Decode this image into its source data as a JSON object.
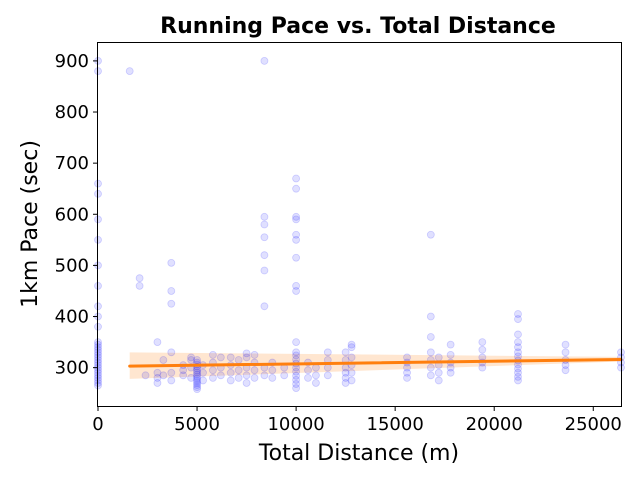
{
  "chart_data": {
    "type": "scatter",
    "title": "Running Pace vs. Total Distance",
    "xlabel": "Total Distance (m)",
    "ylabel": "1km Pace (sec)",
    "xlim": [
      0,
      26400
    ],
    "ylim": [
      225,
      935
    ],
    "xticks": [
      0,
      5000,
      10000,
      15000,
      20000,
      25000
    ],
    "xtick_labels": [
      "0",
      "5000",
      "10000",
      "15000",
      "20000",
      "25000"
    ],
    "yticks": [
      300,
      400,
      500,
      600,
      700,
      800,
      900
    ],
    "ytick_labels": [
      "300",
      "400",
      "500",
      "600",
      "700",
      "800",
      "900"
    ],
    "grid": false,
    "point_color": "#0000ff",
    "point_opacity": 0.12,
    "line_color": "#ff7f0e",
    "band_color": "#ffd6b0",
    "points": [
      {
        "x": 0,
        "y": [
          265,
          270,
          275,
          280,
          285,
          290,
          295,
          300,
          305,
          310,
          315,
          320,
          325,
          330,
          335,
          340,
          345,
          350,
          380,
          400,
          420,
          460,
          500,
          550,
          590,
          640,
          660,
          880,
          900
        ]
      },
      {
        "x": 1600,
        "y": [
          880
        ]
      },
      {
        "x": 2100,
        "y": [
          460,
          475
        ]
      },
      {
        "x": 2400,
        "y": [
          285
        ]
      },
      {
        "x": 3000,
        "y": [
          270,
          280,
          290,
          350
        ]
      },
      {
        "x": 3300,
        "y": [
          285,
          315
        ]
      },
      {
        "x": 3700,
        "y": [
          275,
          290,
          330,
          425,
          450,
          505
        ]
      },
      {
        "x": 4300,
        "y": [
          285,
          295,
          305
        ]
      },
      {
        "x": 4700,
        "y": [
          280,
          300,
          315,
          320
        ]
      },
      {
        "x": 5000,
        "y": [
          258,
          262,
          266,
          270,
          274,
          278,
          282,
          286,
          290,
          294,
          298,
          302,
          306,
          310,
          315
        ]
      },
      {
        "x": 5300,
        "y": [
          275,
          290,
          305
        ]
      },
      {
        "x": 5800,
        "y": [
          280,
          295,
          310,
          325
        ]
      },
      {
        "x": 6200,
        "y": [
          285,
          300,
          320
        ]
      },
      {
        "x": 6700,
        "y": [
          275,
          290,
          305,
          320
        ]
      },
      {
        "x": 7100,
        "y": [
          280,
          295,
          315
        ]
      },
      {
        "x": 7500,
        "y": [
          270,
          285,
          300,
          320,
          328
        ]
      },
      {
        "x": 7900,
        "y": [
          280,
          295,
          310,
          325
        ]
      },
      {
        "x": 8400,
        "y": [
          285,
          300,
          420,
          490,
          520,
          555,
          580,
          595,
          900
        ]
      },
      {
        "x": 8800,
        "y": [
          280,
          295,
          310
        ]
      },
      {
        "x": 9400,
        "y": [
          285,
          300
        ]
      },
      {
        "x": 10000,
        "y": [
          260,
          268,
          276,
          284,
          292,
          300,
          308,
          316,
          324,
          330,
          350,
          450,
          460,
          515,
          550,
          560,
          590,
          595,
          650,
          670
        ]
      },
      {
        "x": 10600,
        "y": [
          280,
          295,
          310
        ]
      },
      {
        "x": 11000,
        "y": [
          270,
          285,
          300
        ]
      },
      {
        "x": 11600,
        "y": [
          285,
          300,
          315,
          330
        ]
      },
      {
        "x": 12500,
        "y": [
          270,
          280,
          290,
          300,
          315,
          330
        ]
      },
      {
        "x": 12800,
        "y": [
          275,
          290,
          305,
          320,
          340,
          345
        ]
      },
      {
        "x": 15600,
        "y": [
          280,
          290,
          300,
          310,
          320
        ]
      },
      {
        "x": 16800,
        "y": [
          285,
          300,
          315,
          330,
          360,
          400,
          560
        ]
      },
      {
        "x": 17200,
        "y": [
          275,
          290,
          305,
          320
        ]
      },
      {
        "x": 17800,
        "y": [
          290,
          300,
          310,
          325,
          345
        ]
      },
      {
        "x": 19400,
        "y": [
          300,
          310,
          320,
          335,
          350
        ]
      },
      {
        "x": 21200,
        "y": [
          275,
          282,
          290,
          298,
          306,
          314,
          322,
          330,
          340,
          350,
          365,
          395,
          405
        ]
      },
      {
        "x": 23600,
        "y": [
          295,
          305,
          315,
          330,
          345
        ]
      },
      {
        "x": 26400,
        "y": [
          300,
          310,
          320,
          330
        ]
      }
    ],
    "trend": {
      "x": [
        1600,
        26400
      ],
      "y": [
        303,
        316
      ],
      "band_lower": [
        278,
        312
      ],
      "band_upper": [
        330,
        321
      ]
    }
  }
}
